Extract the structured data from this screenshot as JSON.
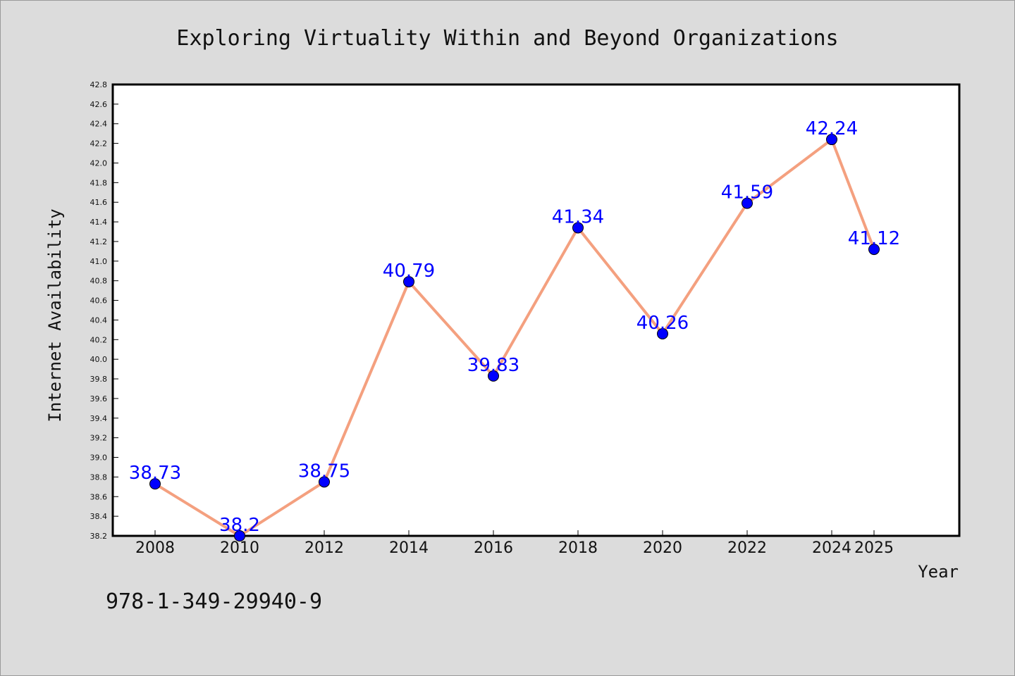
{
  "chart_data": {
    "type": "line",
    "title": "Exploring Virtuality Within and Beyond Organizations",
    "xlabel": "Year",
    "ylabel": "Internet Availability",
    "categories": [
      "2008",
      "2010",
      "2012",
      "2014",
      "2016",
      "2018",
      "2020",
      "2022",
      "2024",
      "2025"
    ],
    "series": [
      {
        "values": [
          38.73,
          38.2,
          38.75,
          40.79,
          39.83,
          41.34,
          40.26,
          41.59,
          42.24,
          41.12
        ],
        "labels": [
          "38.73",
          "38.2",
          "38.75",
          "40.79",
          "39.83",
          "41.34",
          "40.26",
          "41.59",
          "42.24",
          "41.12"
        ]
      }
    ],
    "ylim": [
      38.2,
      42.8
    ],
    "yticks": [
      "38.2",
      "38.4",
      "38.6",
      "38.8",
      "39.0",
      "39.2",
      "39.4",
      "39.6",
      "39.8",
      "40.0",
      "40.2",
      "40.4",
      "40.6",
      "40.8",
      "41.0",
      "41.2",
      "41.4",
      "41.6",
      "41.8",
      "42.0",
      "42.2",
      "42.4",
      "42.6",
      "42.8"
    ],
    "grid": false,
    "line_color": "#f4a07f",
    "marker_color": "#0000ff",
    "label_color": "#0000ff"
  },
  "footer": {
    "isbn": "978-1-349-29940-9"
  }
}
